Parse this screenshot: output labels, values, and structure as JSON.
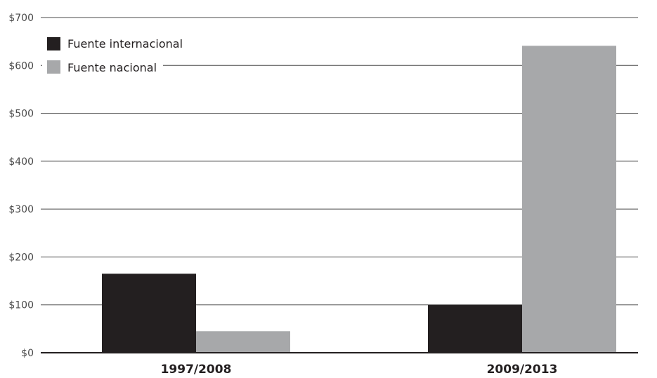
{
  "chart_data": {
    "type": "bar",
    "categories": [
      "1997/2008",
      "2009/2013"
    ],
    "series": [
      {
        "name": "Fuente internacional",
        "values": [
          165,
          100
        ],
        "color": "#231f20"
      },
      {
        "name": "Fuente nacional",
        "values": [
          45,
          641
        ],
        "color": "#a7a8aa"
      }
    ],
    "ylim": [
      0,
      700
    ],
    "yticks": [
      0,
      100,
      200,
      300,
      400,
      500,
      600,
      700
    ],
    "ytick_labels": [
      "$0",
      "$100",
      "$200",
      "$300",
      "$400",
      "$500",
      "$600",
      "$700"
    ],
    "grid": true,
    "legend_position": "top-left"
  }
}
